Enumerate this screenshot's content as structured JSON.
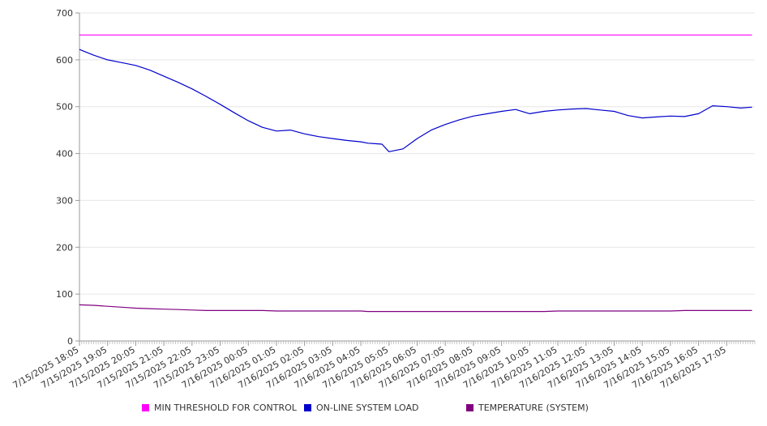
{
  "chart_data": {
    "type": "line",
    "title": "",
    "xlabel": "",
    "ylabel": "",
    "ylim": [
      0,
      700
    ],
    "yticks": [
      0,
      100,
      200,
      300,
      400,
      500,
      600,
      700
    ],
    "grid": true,
    "legend_position": "bottom",
    "xtick_labels": [
      "7/15/2025 18:05",
      "7/15/2025 19:05",
      "7/15/2025 20:05",
      "7/15/2025 21:05",
      "7/15/2025 22:05",
      "7/15/2025 23:05",
      "7/16/2025 00:05",
      "7/16/2025 01:05",
      "7/16/2025 02:05",
      "7/16/2025 03:05",
      "7/16/2025 04:05",
      "7/16/2025 05:05",
      "7/16/2025 06:05",
      "7/16/2025 07:05",
      "7/16/2025 08:05",
      "7/16/2025 09:05",
      "7/16/2025 10:05",
      "7/16/2025 11:05",
      "7/16/2025 12:05",
      "7/16/2025 13:05",
      "7/16/2025 14:05",
      "7/16/2025 15:05",
      "7/16/2025 16:05",
      "7/16/2025 17:05"
    ],
    "x_hours": [
      0,
      0.5,
      1,
      1.5,
      2,
      2.5,
      3,
      3.5,
      4,
      4.5,
      5,
      5.5,
      6,
      6.5,
      7,
      7.5,
      8,
      8.5,
      9,
      9.5,
      10,
      10.25,
      10.5,
      10.75,
      11,
      11.5,
      12,
      12.5,
      13,
      13.5,
      14,
      14.5,
      15,
      15.5,
      16,
      16.5,
      17,
      17.5,
      18,
      18.5,
      19,
      19.5,
      20,
      20.5,
      21,
      21.5,
      22,
      22.5,
      23,
      23.5,
      23.9
    ],
    "series": [
      {
        "name": "MIN THRESHOLD FOR CONTROL",
        "color": "#FF00FF",
        "values": [
          653,
          653,
          653,
          653,
          653,
          653,
          653,
          653,
          653,
          653,
          653,
          653,
          653,
          653,
          653,
          653,
          653,
          653,
          653,
          653,
          653,
          653,
          653,
          653,
          653,
          653,
          653,
          653,
          653,
          653,
          653,
          653,
          653,
          653,
          653,
          653,
          653,
          653,
          653,
          653,
          653,
          653,
          653,
          653,
          653,
          653,
          653,
          653,
          653,
          653,
          653
        ]
      },
      {
        "name": "ON-LINE SYSTEM LOAD",
        "color": "#0000CC",
        "values": [
          622,
          610,
          600,
          594,
          588,
          578,
          565,
          552,
          538,
          522,
          505,
          487,
          470,
          456,
          448,
          450,
          442,
          436,
          432,
          428,
          425,
          422,
          421,
          420,
          404,
          410,
          432,
          450,
          462,
          472,
          480,
          485,
          490,
          494,
          485,
          490,
          493,
          495,
          496,
          493,
          490,
          481,
          476,
          478,
          480,
          479,
          485,
          502,
          500,
          497,
          499
        ]
      },
      {
        "name": "TEMPERATURE (SYSTEM)",
        "color": "#800080",
        "values": [
          77,
          76,
          74,
          72,
          70,
          69,
          68,
          67,
          66,
          65,
          65,
          65,
          65,
          65,
          64,
          64,
          64,
          64,
          64,
          64,
          64,
          63,
          63,
          63,
          63,
          63,
          63,
          63,
          63,
          63,
          63,
          63,
          63,
          63,
          63,
          63,
          64,
          64,
          64,
          64,
          64,
          64,
          64,
          64,
          64,
          65,
          65,
          65,
          65,
          65,
          65
        ]
      }
    ]
  }
}
